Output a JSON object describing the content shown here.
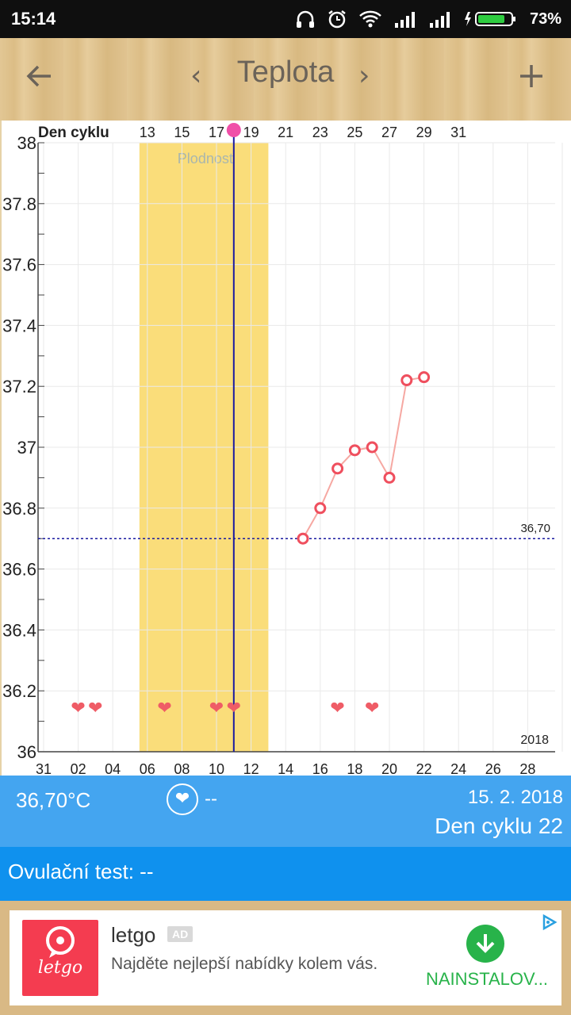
{
  "status_bar": {
    "time": "15:14",
    "battery": "73%"
  },
  "appbar": {
    "title": "Teplota",
    "back_icon": "arrow-left-icon",
    "prev_icon": "chevron-left-icon",
    "next_icon": "chevron-right-icon",
    "add_icon": "plus-icon"
  },
  "chart_data": {
    "type": "line",
    "cycle_label": "Den cyklu",
    "top_ticks": [
      "13",
      "15",
      "17",
      "19",
      "21",
      "23",
      "25",
      "27",
      "29",
      "31"
    ],
    "bottom_ticks": [
      "31",
      "02",
      "04",
      "06",
      "08",
      "10",
      "12",
      "14",
      "16",
      "18",
      "20",
      "22",
      "24",
      "26",
      "28"
    ],
    "y_ticks": [
      "38",
      "37.8",
      "37.6",
      "37.4",
      "37.2",
      "37",
      "36.8",
      "36.6",
      "36.4",
      "36.2",
      "36"
    ],
    "ylim": [
      36,
      38
    ],
    "fertile_label": "Plodnost",
    "fertile_window_days": [
      6,
      13
    ],
    "today_day": 11,
    "baseline": {
      "value": 36.7,
      "label": "36,70"
    },
    "year_label": "2018",
    "series": [
      {
        "x": [
          15,
          16,
          17,
          18,
          19,
          20,
          21,
          22
        ],
        "y": [
          36.7,
          36.8,
          36.93,
          36.99,
          37.0,
          36.9,
          37.22,
          37.23
        ]
      }
    ],
    "hearts_days": [
      2,
      3,
      7,
      10,
      11,
      17,
      19
    ],
    "colors": {
      "fertile": "#fadd7a",
      "line": "#f6a8a2",
      "point": "#ef4f5e",
      "baseline": "#1a1aa0",
      "today": "#1a1aa0",
      "heart": "#ef5c66",
      "marker": "#f04fa8"
    }
  },
  "info": {
    "temperature": "36,70°C",
    "heart_value": "--",
    "date": "15. 2. 2018",
    "cycle_day": "Den cyklu 22"
  },
  "ovulation": {
    "text": "Ovulační test: --"
  },
  "ad": {
    "name": "letgo",
    "badge": "AD",
    "logo_text": "letgo",
    "description": "Najděte nejlepší nabídky kolem vás.",
    "install": "NAINSTALOV..."
  }
}
